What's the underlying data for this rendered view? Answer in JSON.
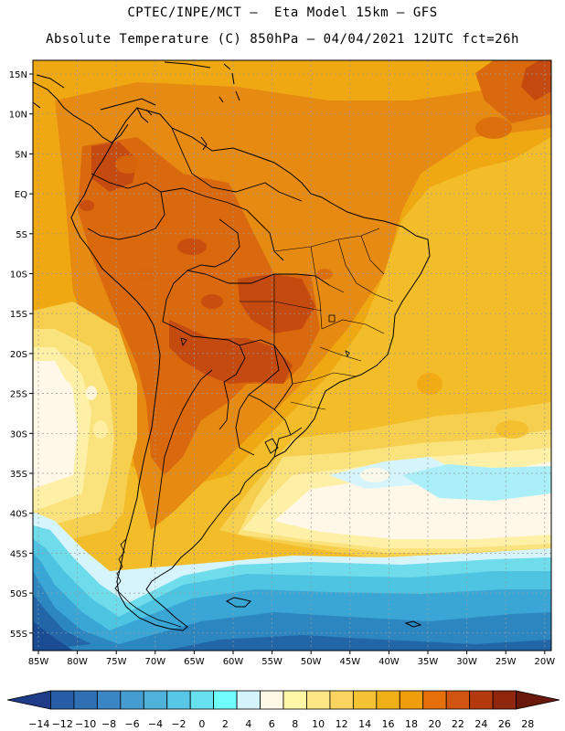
{
  "header": {
    "line1": "CPTEC/INPE/MCT –  Eta Model 15km – GFS",
    "line2": "Absolute Temperature (C) 850hPa – 04/04/2021 12UTC fct=26h"
  },
  "map": {
    "lat_labels": [
      "15N",
      "10N",
      "5N",
      "EQ",
      "5S",
      "10S",
      "15S",
      "20S",
      "25S",
      "30S",
      "35S",
      "40S",
      "45S",
      "50S",
      "55S"
    ],
    "lon_labels": [
      "85W",
      "80W",
      "75W",
      "70W",
      "65W",
      "60W",
      "55W",
      "50W",
      "45W",
      "40W",
      "35W",
      "30W",
      "25W",
      "20W"
    ],
    "grid_lines": "dotted",
    "bands": [
      {
        "level": 24,
        "color": "#c44a10"
      },
      {
        "level": 22,
        "color": "#d9690c"
      },
      {
        "level": 20,
        "color": "#e68a12"
      },
      {
        "level": 18,
        "color": "#f0a812"
      },
      {
        "level": 16,
        "color": "#f3bd2a"
      },
      {
        "level": 14,
        "color": "#f6cf4e"
      },
      {
        "level": 12,
        "color": "#fae27c"
      },
      {
        "level": 10,
        "color": "#fff0a8"
      },
      {
        "level": 8,
        "color": "#fff8e8"
      },
      {
        "level": 6,
        "color": "#d6f4fb"
      },
      {
        "level": 4,
        "color": "#aaeef8"
      },
      {
        "level": 2,
        "color": "#6fdcec"
      },
      {
        "level": 0,
        "color": "#4cc4e2"
      },
      {
        "level": -2,
        "color": "#3aa6d6"
      },
      {
        "level": -4,
        "color": "#2c86c0"
      },
      {
        "level": -6,
        "color": "#2266a8"
      },
      {
        "level": -8,
        "color": "#1a4c94"
      }
    ]
  },
  "colorbar": {
    "labels": [
      "-14",
      "-12",
      "-10",
      "-8",
      "-6",
      "-4",
      "-2",
      "0",
      "2",
      "4",
      "6",
      "8",
      "10",
      "12",
      "14",
      "16",
      "18",
      "20",
      "22",
      "24",
      "26",
      "28"
    ],
    "colors": [
      "#1f3c88",
      "#275da6",
      "#2f70b4",
      "#3a86c4",
      "#459cd0",
      "#4fb2db",
      "#58c6e5",
      "#67e0ef",
      "#6ffdfd",
      "#d4f4fb",
      "#fff8e6",
      "#fff7a6",
      "#fde785",
      "#fad45e",
      "#f4c232",
      "#f1b018",
      "#f09d0c",
      "#e5700a",
      "#d05510",
      "#b43a0e",
      "#8f260c",
      "#6a180c"
    ]
  }
}
